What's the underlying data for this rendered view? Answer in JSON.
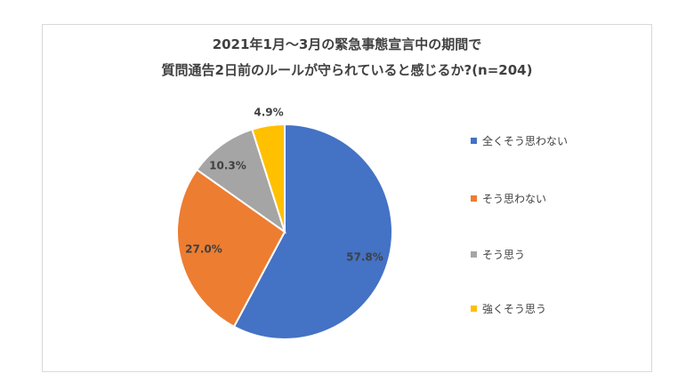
{
  "chart_data": {
    "type": "pie",
    "title_lines": [
      "2021年1月〜3月の緊急事態宣言中の期間で",
      "質問通告2日前のルールが守られていると感じるか?(n=204)"
    ],
    "categories": [
      "全くそう思わない",
      "そう思わない",
      "そう思う",
      "強くそう思う"
    ],
    "values": [
      57.8,
      27.0,
      10.3,
      4.9
    ],
    "labels": [
      "57.8%",
      "27.0%",
      "10.3%",
      "4.9%"
    ],
    "colors": [
      "#4472c4",
      "#ed7d31",
      "#a5a5a5",
      "#ffc000"
    ],
    "legend_position": "right"
  }
}
